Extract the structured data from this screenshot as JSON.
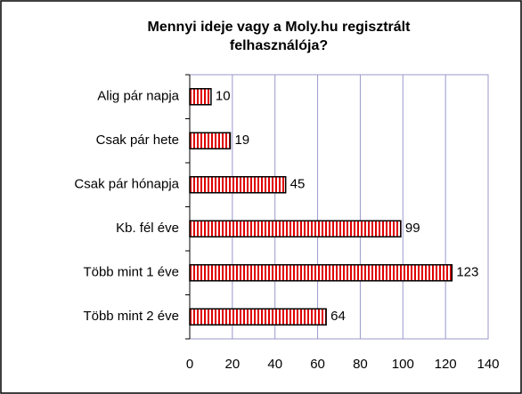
{
  "chart_data": {
    "type": "bar",
    "orientation": "horizontal",
    "title": "Mennyi ideje vagy a Moly.hu regisztrált felhasználója?",
    "categories": [
      "Alig pár napja",
      "Csak pár hete",
      "Csak pár hónapja",
      "Kb. fél éve",
      "Több mint 1 éve",
      "Több mint 2 éve"
    ],
    "values": [
      10,
      19,
      45,
      99,
      123,
      64
    ],
    "color": "#e00000",
    "xlim": [
      0,
      140
    ],
    "xticks": [
      0,
      20,
      40,
      60,
      80,
      100,
      120,
      140
    ],
    "grid": true
  }
}
